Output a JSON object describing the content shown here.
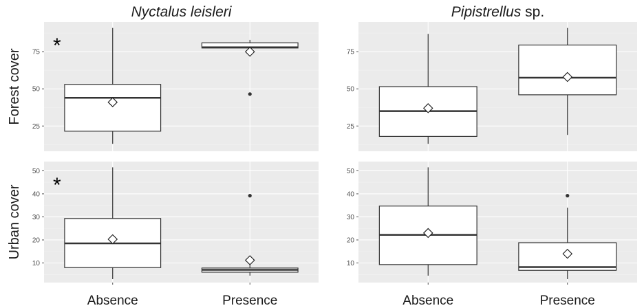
{
  "chart_data": {
    "type": "box",
    "columns": [
      {
        "title_italic": "Nyctalus leisleri",
        "title_normal": ""
      },
      {
        "title_italic": "Pipistrellus",
        "title_normal": " sp."
      }
    ],
    "rows": [
      {
        "ylabel": "Forest cover",
        "ylim": [
          8,
          95
        ],
        "yticks": [
          25,
          50,
          75
        ]
      },
      {
        "ylabel": "Urban cover",
        "ylim": [
          1.5,
          54
        ],
        "yticks": [
          10,
          20,
          30,
          40,
          50
        ]
      }
    ],
    "categories": [
      "Absence",
      "Presence"
    ],
    "significance_marker": "*",
    "panels": [
      {
        "row": 0,
        "col": 0,
        "significant": true,
        "boxes": [
          {
            "category": "Absence",
            "whisker_low": 13,
            "q1": 21.5,
            "median": 44,
            "q3": 53,
            "whisker_high": 91,
            "mean": 41,
            "outliers": []
          },
          {
            "category": "Presence",
            "whisker_low": 77.5,
            "q1": 77.5,
            "median": 78,
            "q3": 81,
            "whisker_high": 83,
            "mean": 75,
            "outliers": [
              46.5
            ]
          }
        ]
      },
      {
        "row": 0,
        "col": 1,
        "significant": false,
        "boxes": [
          {
            "category": "Absence",
            "whisker_low": 13,
            "q1": 18,
            "median": 35,
            "q3": 51.5,
            "whisker_high": 87,
            "mean": 37,
            "outliers": []
          },
          {
            "category": "Presence",
            "whisker_low": 19,
            "q1": 46,
            "median": 57.5,
            "q3": 79.5,
            "whisker_high": 91,
            "mean": 58,
            "outliers": []
          }
        ]
      },
      {
        "row": 1,
        "col": 0,
        "significant": true,
        "boxes": [
          {
            "category": "Absence",
            "whisker_low": 3,
            "q1": 8,
            "median": 18.5,
            "q3": 29.3,
            "whisker_high": 51.5,
            "mean": 20.3,
            "outliers": []
          },
          {
            "category": "Presence",
            "whisker_low": 4.5,
            "q1": 6,
            "median": 7,
            "q3": 7.8,
            "whisker_high": 10,
            "mean": 11.2,
            "outliers": [
              39.2
            ]
          }
        ]
      },
      {
        "row": 1,
        "col": 1,
        "significant": false,
        "boxes": [
          {
            "category": "Absence",
            "whisker_low": 4.5,
            "q1": 9.3,
            "median": 22.2,
            "q3": 34.7,
            "whisker_high": 51.5,
            "mean": 23,
            "outliers": []
          },
          {
            "category": "Presence",
            "whisker_low": 3,
            "q1": 6.8,
            "median": 8.2,
            "q3": 18.8,
            "whisker_high": 34,
            "mean": 14,
            "outliers": [
              39.2
            ]
          }
        ]
      }
    ],
    "colors": {
      "panel_bg": "#ebebeb",
      "grid": "#ffffff",
      "box_fill": "#ffffff",
      "box_stroke": "#333333",
      "median": "#333333"
    },
    "legend": "none",
    "grid": true
  }
}
